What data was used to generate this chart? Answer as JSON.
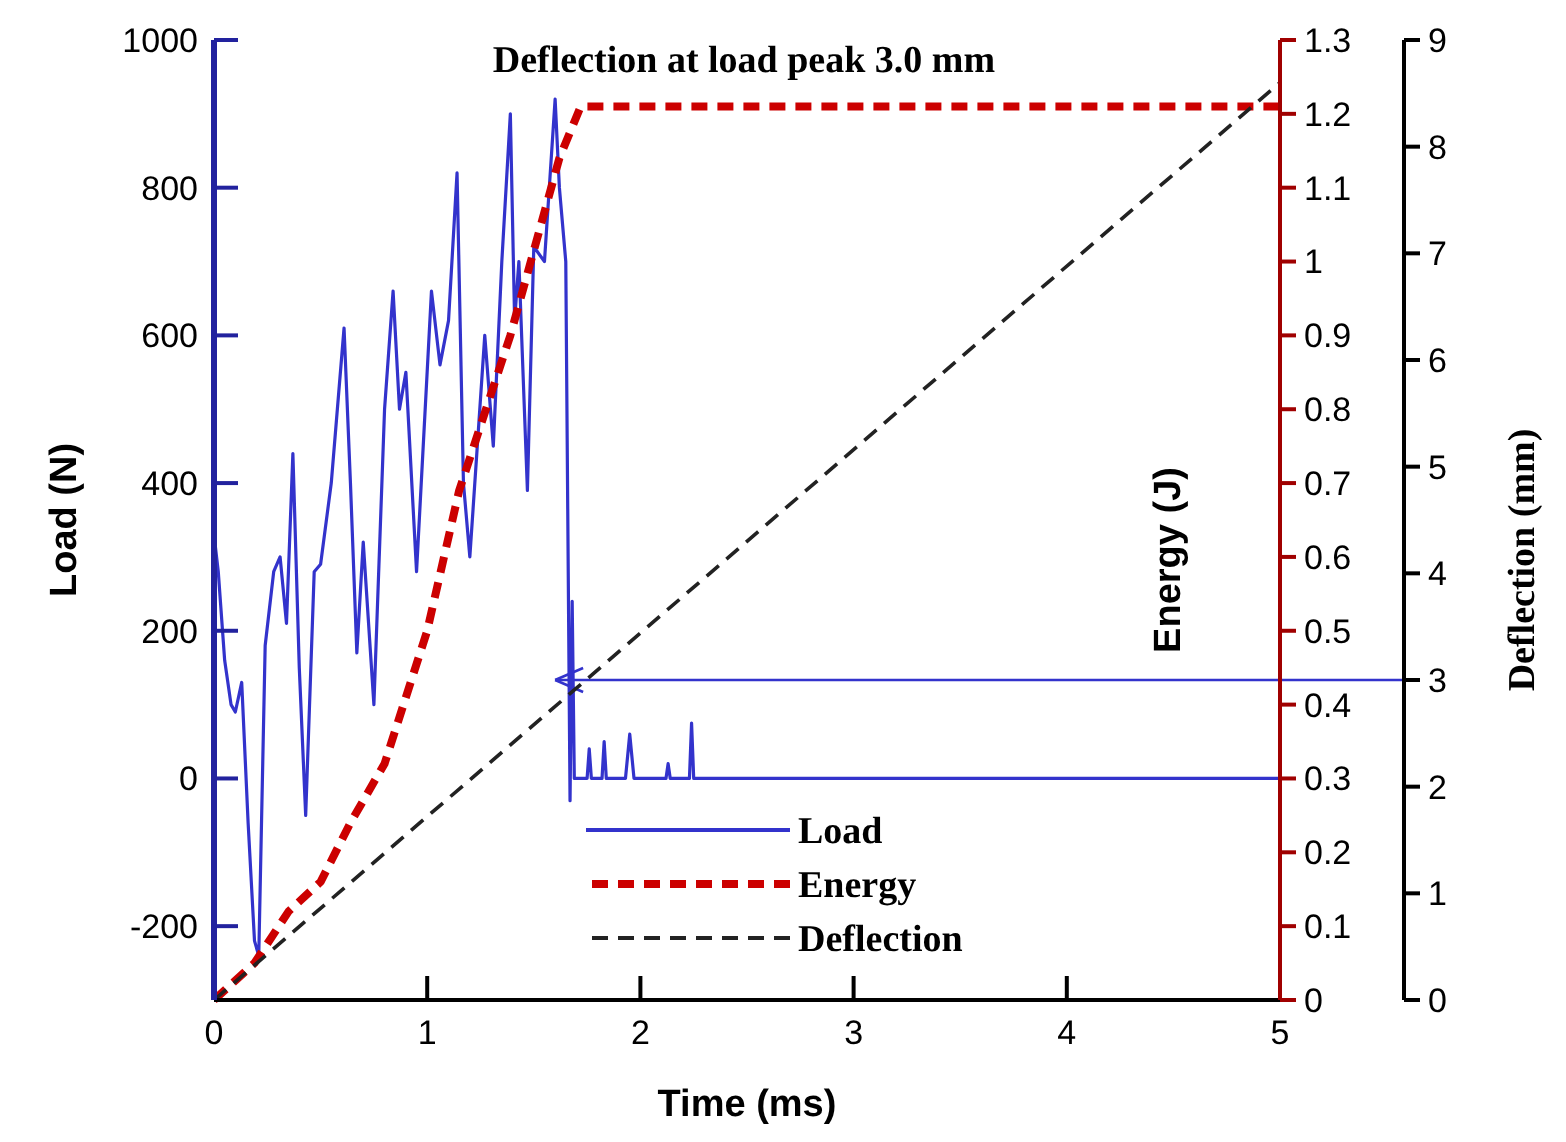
{
  "chart_data": {
    "type": "line",
    "title": "Deflection at load peak 3.0 mm",
    "xlabel": "Time (ms)",
    "ylabel": "Load (N)",
    "y2label": "Energy (J)",
    "y3label": "Deflection  (mm)",
    "xlim": [
      0,
      5
    ],
    "xticks": [
      0,
      1,
      2,
      3,
      4,
      5
    ],
    "ylim": [
      -300,
      1000
    ],
    "yticks": [
      -200,
      0,
      200,
      400,
      600,
      800,
      1000
    ],
    "y2lim": [
      0,
      1.3
    ],
    "y2ticks": [
      0,
      0.1,
      0.2,
      0.3,
      0.4,
      0.5,
      0.6,
      0.7,
      0.8,
      0.9,
      1,
      1.1,
      1.2,
      1.3
    ],
    "y3lim": [
      0,
      9
    ],
    "y3ticks": [
      0,
      1,
      2,
      3,
      4,
      5,
      6,
      7,
      8,
      9
    ],
    "legend": "bottom",
    "grid": false,
    "ref_lines": [
      {
        "axis": "y3",
        "value": 3,
        "color": "#3333cc"
      }
    ],
    "series": [
      {
        "name": "Load",
        "color": "#3333cc",
        "line_style": "solid",
        "x": [
          0,
          0.02,
          0.05,
          0.08,
          0.1,
          0.13,
          0.16,
          0.19,
          0.21,
          0.24,
          0.28,
          0.31,
          0.34,
          0.37,
          0.4,
          0.43,
          0.47,
          0.5,
          0.55,
          0.61,
          0.64,
          0.67,
          0.7,
          0.75,
          0.8,
          0.84,
          0.87,
          0.9,
          0.95,
          1.02,
          1.06,
          1.1,
          1.14,
          1.17,
          1.2,
          1.27,
          1.31,
          1.35,
          1.39,
          1.41,
          1.43,
          1.47,
          1.5,
          1.55,
          1.6,
          1.62,
          1.65,
          1.67,
          1.68,
          1.69,
          1.7,
          1.75,
          1.76,
          1.77,
          1.82,
          1.83,
          1.84,
          1.93,
          1.95,
          1.97,
          2.12,
          2.13,
          2.14,
          2.23,
          2.24,
          2.25,
          5
        ],
        "values": [
          330,
          280,
          160,
          100,
          90,
          130,
          -60,
          -220,
          -240,
          180,
          280,
          300,
          210,
          440,
          150,
          -50,
          280,
          290,
          400,
          610,
          400,
          170,
          320,
          100,
          500,
          660,
          500,
          550,
          280,
          660,
          560,
          620,
          820,
          400,
          300,
          600,
          450,
          700,
          900,
          620,
          700,
          390,
          720,
          700,
          920,
          800,
          700,
          -30,
          240,
          0,
          0,
          0,
          40,
          0,
          0,
          50,
          0,
          0,
          60,
          0,
          0,
          20,
          0,
          0,
          75,
          0,
          0
        ]
      },
      {
        "name": "Energy",
        "color": "#cc0000",
        "line_style": "dashed",
        "axis": "y2",
        "x": [
          0,
          0.19,
          0.35,
          0.5,
          0.64,
          0.8,
          1.0,
          1.15,
          1.39,
          1.62,
          1.72,
          5
        ],
        "values": [
          0,
          0.05,
          0.12,
          0.16,
          0.24,
          0.32,
          0.5,
          0.69,
          0.9,
          1.14,
          1.21,
          1.21
        ]
      },
      {
        "name": "Deflection",
        "color": "#222222",
        "line_style": "dashed",
        "axis": "y3",
        "x": [
          0,
          5
        ],
        "values": [
          0,
          8.6
        ]
      }
    ]
  }
}
